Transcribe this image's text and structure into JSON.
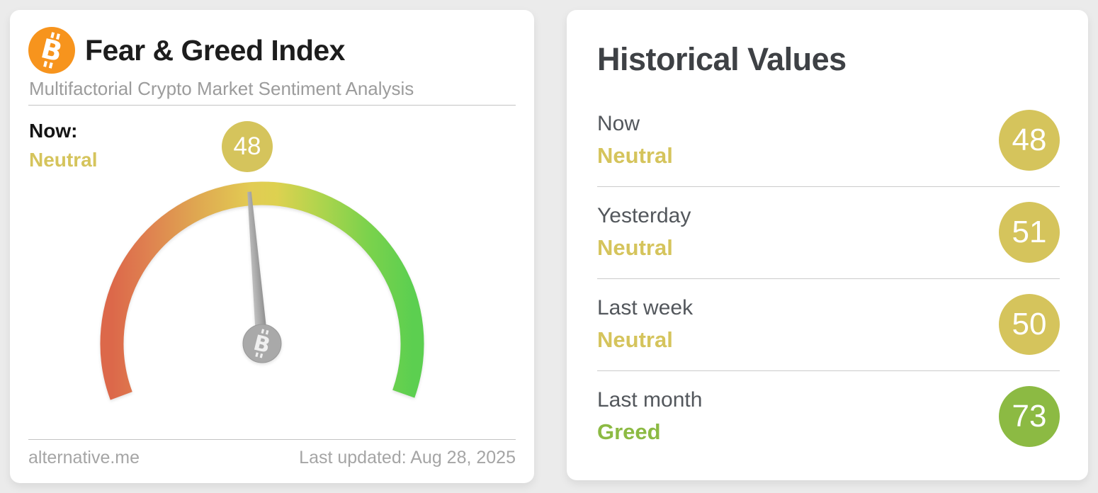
{
  "theme": {
    "page_background": "#ebebeb",
    "card_background": "#ffffff",
    "neutral_yellow": "#d5c45c",
    "greed_green": "#8cba43",
    "bitcoin_orange": "#f7941d"
  },
  "gauge_card": {
    "icon": "bitcoin-icon",
    "title": "Fear & Greed Index",
    "subtitle": "Multifactorial Crypto Market Sentiment Analysis",
    "now_label": "Now:",
    "now_sentiment": "Neutral",
    "now_value": "48",
    "accent_color": "#d5c45c",
    "footer_left": "alternative.me",
    "footer_right": "Last updated: Aug 28, 2025"
  },
  "gauge": {
    "type": "gauge",
    "value": 48,
    "min": 0,
    "max": 100,
    "start_angle_deg": 200,
    "end_angle_deg": -20,
    "needle_rotation_deg": -4.8,
    "arc_colors": [
      "#dc684a",
      "#df8150",
      "#dfa751",
      "#e2cb53",
      "#b3d44d",
      "#7cd24c",
      "#5ccf50"
    ],
    "needle_color": "#a8a8a8",
    "hub_icon": "bitcoin-icon"
  },
  "historical": {
    "title": "Historical Values",
    "rows": [
      {
        "label": "Now",
        "sentiment": "Neutral",
        "value": "48",
        "accent_color": "#d5c45c"
      },
      {
        "label": "Yesterday",
        "sentiment": "Neutral",
        "value": "51",
        "accent_color": "#d5c45c"
      },
      {
        "label": "Last week",
        "sentiment": "Neutral",
        "value": "50",
        "accent_color": "#d5c45c"
      },
      {
        "label": "Last month",
        "sentiment": "Greed",
        "value": "73",
        "accent_color": "#8cba43"
      }
    ]
  }
}
